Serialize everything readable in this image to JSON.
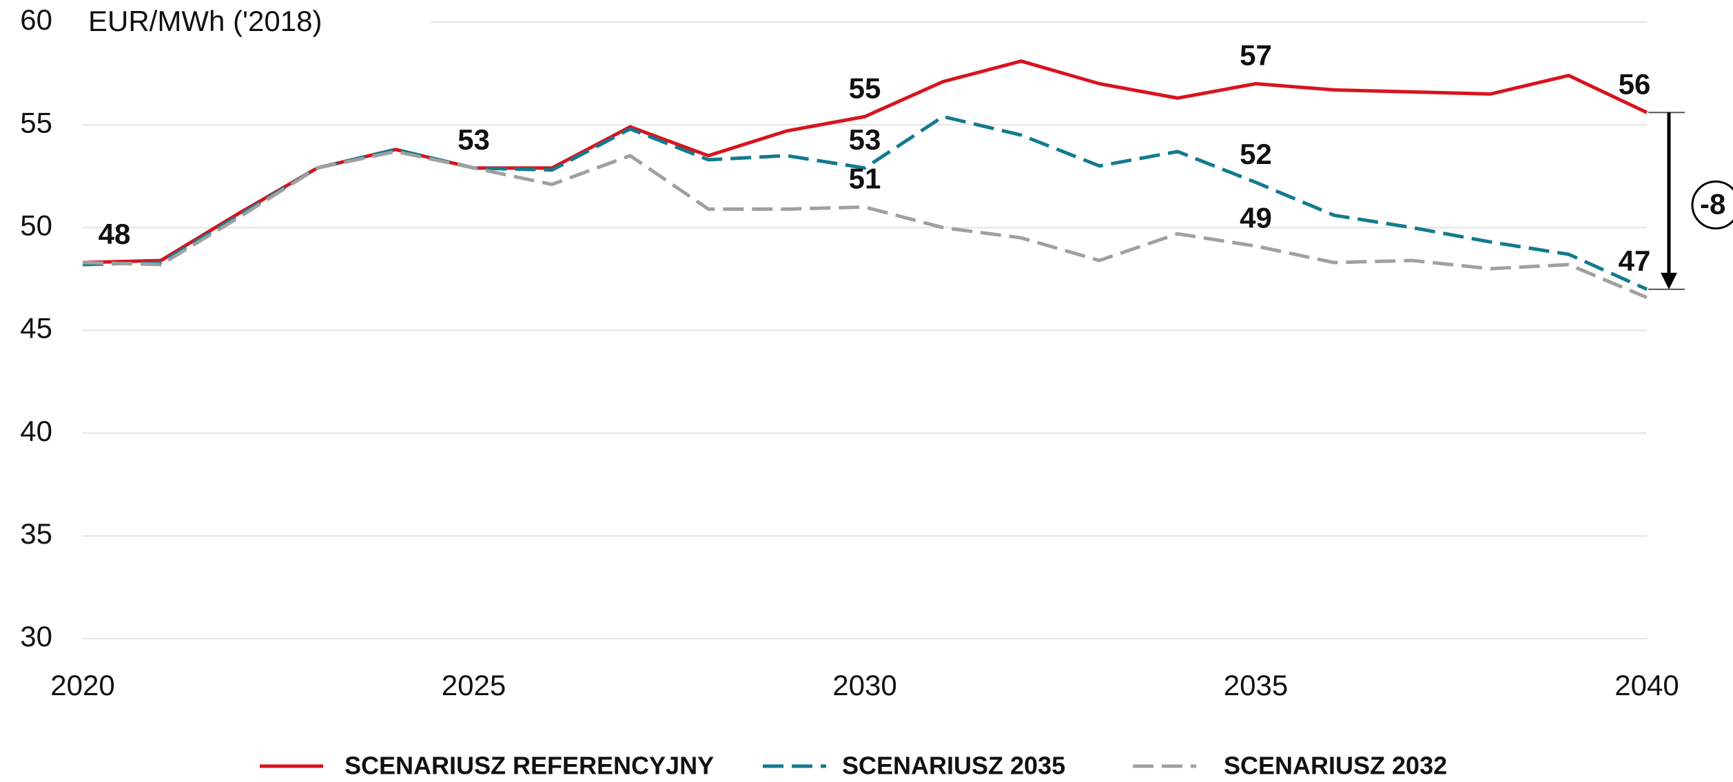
{
  "chart_data": {
    "type": "line",
    "y_axis_label": "EUR/MWh ('2018)",
    "x": [
      2020,
      2021,
      2022,
      2023,
      2024,
      2025,
      2026,
      2027,
      2028,
      2029,
      2030,
      2031,
      2032,
      2033,
      2034,
      2035,
      2036,
      2037,
      2038,
      2039,
      2040
    ],
    "xlim": [
      2020,
      2040
    ],
    "xticks": [
      2020,
      2025,
      2030,
      2035,
      2040
    ],
    "ylim": [
      30,
      60
    ],
    "yticks": [
      30,
      35,
      40,
      45,
      50,
      55,
      60
    ],
    "grid": true,
    "legend": "bottom",
    "series": [
      {
        "name": "SCENARIUSZ REFERENCYJNY",
        "color": "#d7141e",
        "dash": "solid",
        "values": [
          48.3,
          48.4,
          50.7,
          52.9,
          53.8,
          52.9,
          52.9,
          54.9,
          53.5,
          54.7,
          55.4,
          57.1,
          58.1,
          57.0,
          56.3,
          57.0,
          56.7,
          56.6,
          56.5,
          57.4,
          55.6
        ],
        "value_labels": [
          "48",
          null,
          null,
          null,
          null,
          "53",
          null,
          null,
          null,
          null,
          "55",
          null,
          null,
          null,
          null,
          "57",
          null,
          null,
          null,
          null,
          "56"
        ]
      },
      {
        "name": "SCENARIUSZ 2035",
        "color": "#137a8e",
        "dash": "dashed",
        "values": [
          48.2,
          48.3,
          50.6,
          52.9,
          53.8,
          52.9,
          52.8,
          54.8,
          53.3,
          53.5,
          52.9,
          55.4,
          54.5,
          53.0,
          53.7,
          52.2,
          50.6,
          50.0,
          49.3,
          48.7,
          47.0
        ],
        "value_labels": [
          null,
          null,
          null,
          null,
          null,
          null,
          null,
          null,
          null,
          null,
          "53",
          null,
          null,
          null,
          null,
          "52",
          null,
          null,
          null,
          null,
          "47"
        ]
      },
      {
        "name": "SCENARIUSZ 2032",
        "color": "#a0a0a0",
        "dash": "dashed",
        "values": [
          48.3,
          48.2,
          50.5,
          52.9,
          53.7,
          52.9,
          52.1,
          53.5,
          50.9,
          50.9,
          51.0,
          50.0,
          49.5,
          48.4,
          49.7,
          49.1,
          48.3,
          48.4,
          48.0,
          48.2,
          46.6
        ],
        "value_labels": [
          null,
          null,
          null,
          null,
          null,
          null,
          null,
          null,
          null,
          null,
          "51",
          null,
          null,
          null,
          null,
          "49",
          null,
          null,
          null,
          null,
          null
        ]
      }
    ],
    "annotation": "-8"
  }
}
